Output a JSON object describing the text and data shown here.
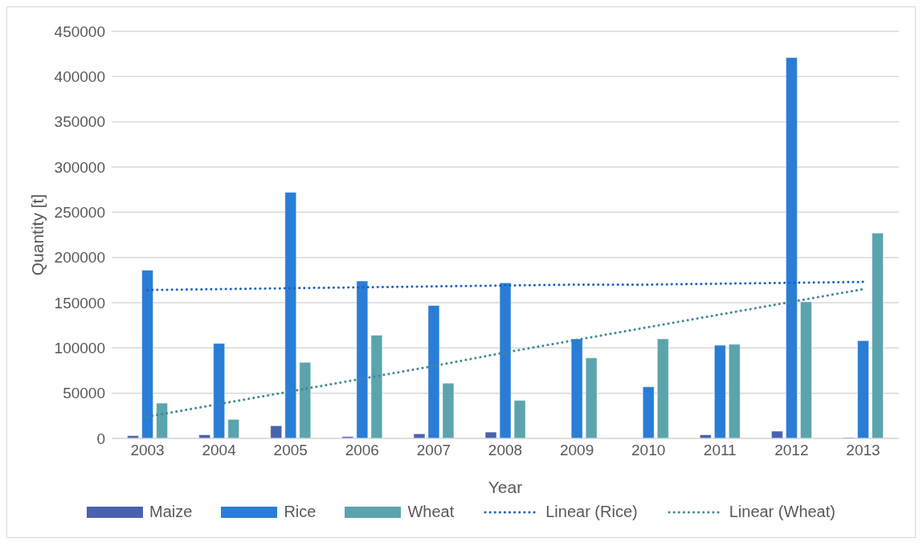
{
  "chart_data": {
    "type": "bar",
    "xlabel": "Year",
    "ylabel": "Quantity [t]",
    "categories": [
      "2003",
      "2004",
      "2005",
      "2006",
      "2007",
      "2008",
      "2009",
      "2010",
      "2011",
      "2012",
      "2013"
    ],
    "series": [
      {
        "name": "Maize",
        "color": "#4a62ae",
        "values": [
          3000,
          4000,
          14000,
          2000,
          5000,
          7000,
          0,
          0,
          4000,
          8000,
          1000
        ]
      },
      {
        "name": "Rice",
        "color": "#2a7dd6",
        "values": [
          186000,
          105000,
          272000,
          174000,
          147000,
          172000,
          110000,
          57000,
          103000,
          421000,
          108000
        ]
      },
      {
        "name": "Wheat",
        "color": "#5ba4ae",
        "values": [
          39000,
          21000,
          84000,
          114000,
          61000,
          42000,
          89000,
          110000,
          104000,
          151000,
          227000
        ]
      },
      {
        "name": "Linear (Rice)",
        "type": "line",
        "line_style": "dotted",
        "color": "#1560c0",
        "values": [
          164000,
          165000,
          166000,
          167000,
          168000,
          169000,
          170000,
          170000,
          171000,
          172000,
          173000
        ]
      },
      {
        "name": "Linear (Wheat)",
        "type": "line",
        "line_style": "dotted",
        "color": "#3f8a94",
        "values": [
          24000,
          38000,
          52000,
          66000,
          80000,
          95000,
          109000,
          123000,
          137000,
          151000,
          165000
        ]
      }
    ],
    "ylim": [
      0,
      450000
    ],
    "yticks": [
      0,
      50000,
      100000,
      150000,
      200000,
      250000,
      300000,
      350000,
      400000,
      450000
    ],
    "grid": "y",
    "legend": "bottom",
    "marker": "none"
  }
}
